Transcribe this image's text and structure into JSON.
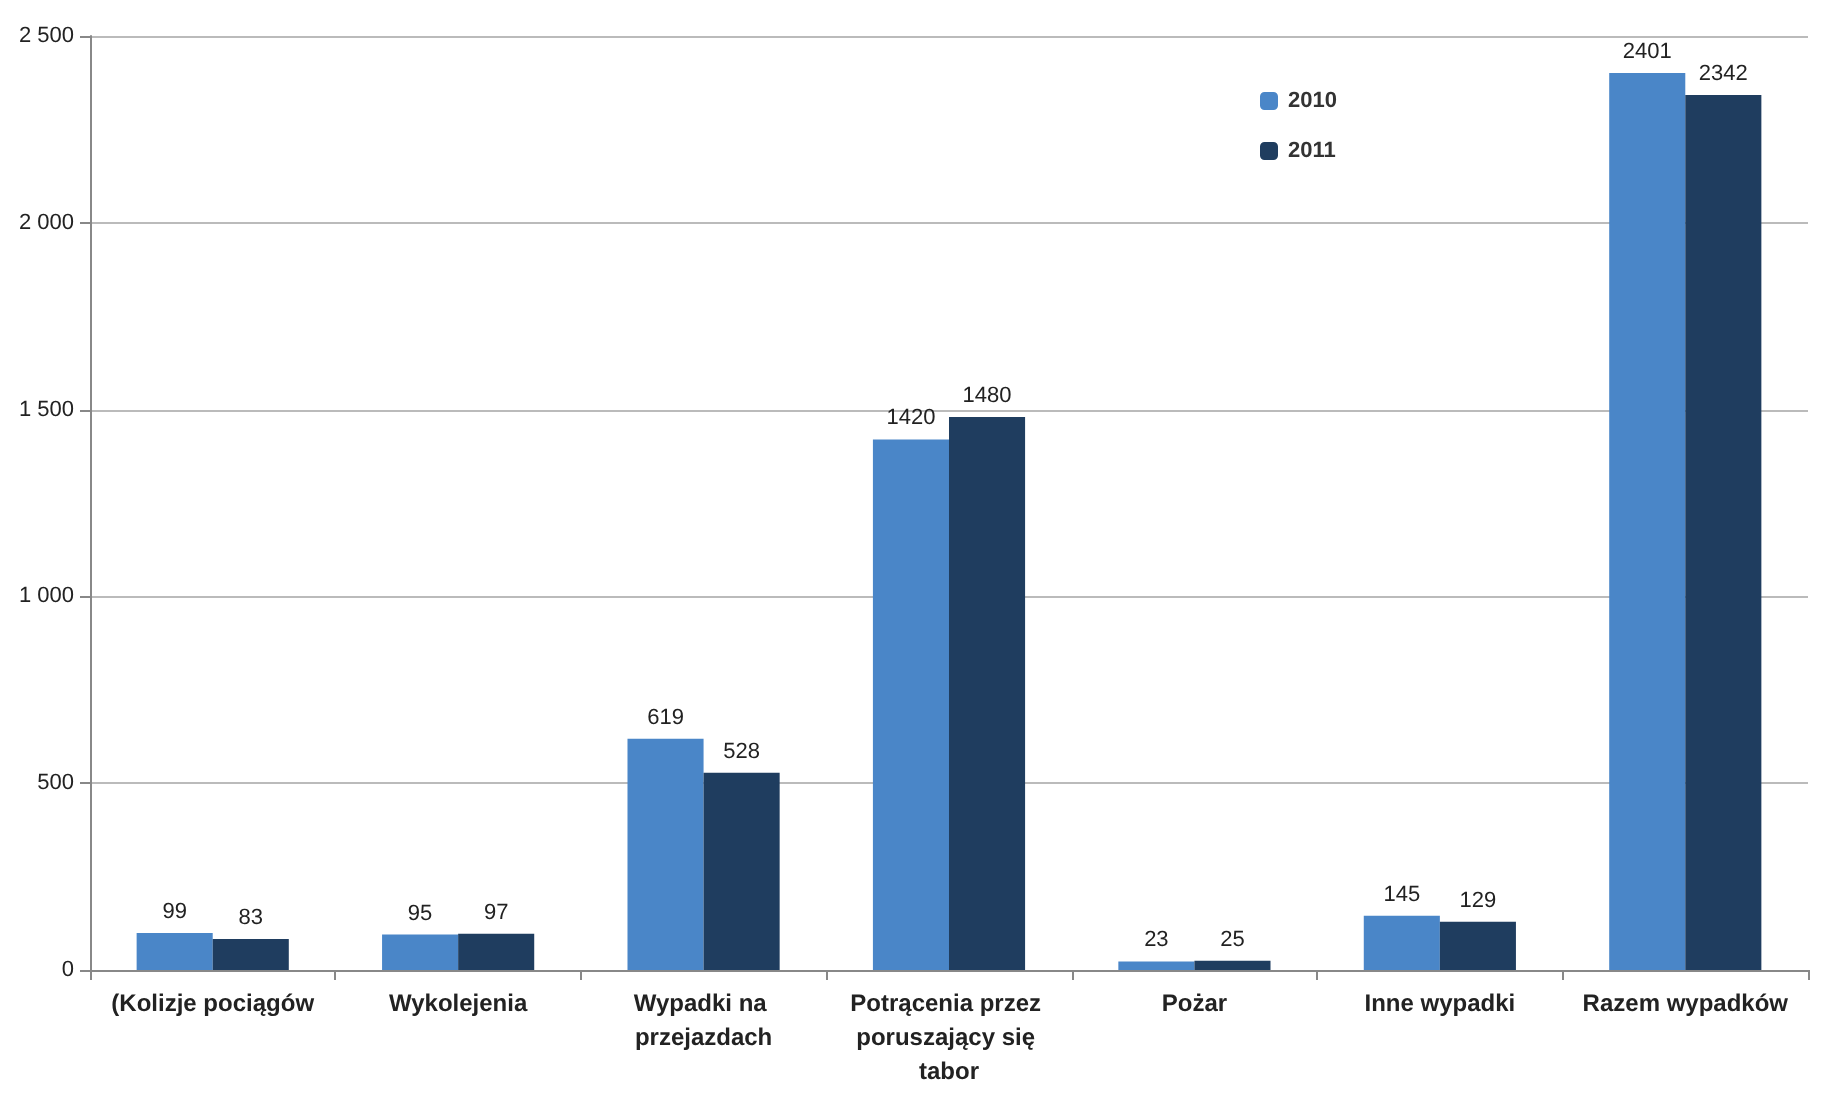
{
  "chart_data": {
    "type": "bar",
    "categories": [
      "(Kolizje pociągów",
      "Wykolejenia",
      "Wypadki na przejazdach",
      "Potrącenia przez poruszający się tabor",
      "Pożar",
      "Inne wypadki",
      "Razem wypadków"
    ],
    "series": [
      {
        "name": "2010",
        "color": "#4a86c8",
        "values": [
          99,
          95,
          619,
          1420,
          23,
          145,
          2401
        ]
      },
      {
        "name": "2011",
        "color": "#1f3d5f",
        "values": [
          83,
          97,
          528,
          1480,
          25,
          129,
          2342
        ]
      }
    ],
    "ylim": [
      0,
      2500
    ],
    "yticks": [
      0,
      500,
      {
        "value": 1000,
        "label": "1 000"
      },
      {
        "value": 1500,
        "label": "1 500"
      },
      {
        "value": 2000,
        "label": "2 000"
      },
      {
        "value": 2500,
        "label": "2 500"
      }
    ],
    "grid": "y",
    "legend": "top right",
    "data_labels": true
  }
}
